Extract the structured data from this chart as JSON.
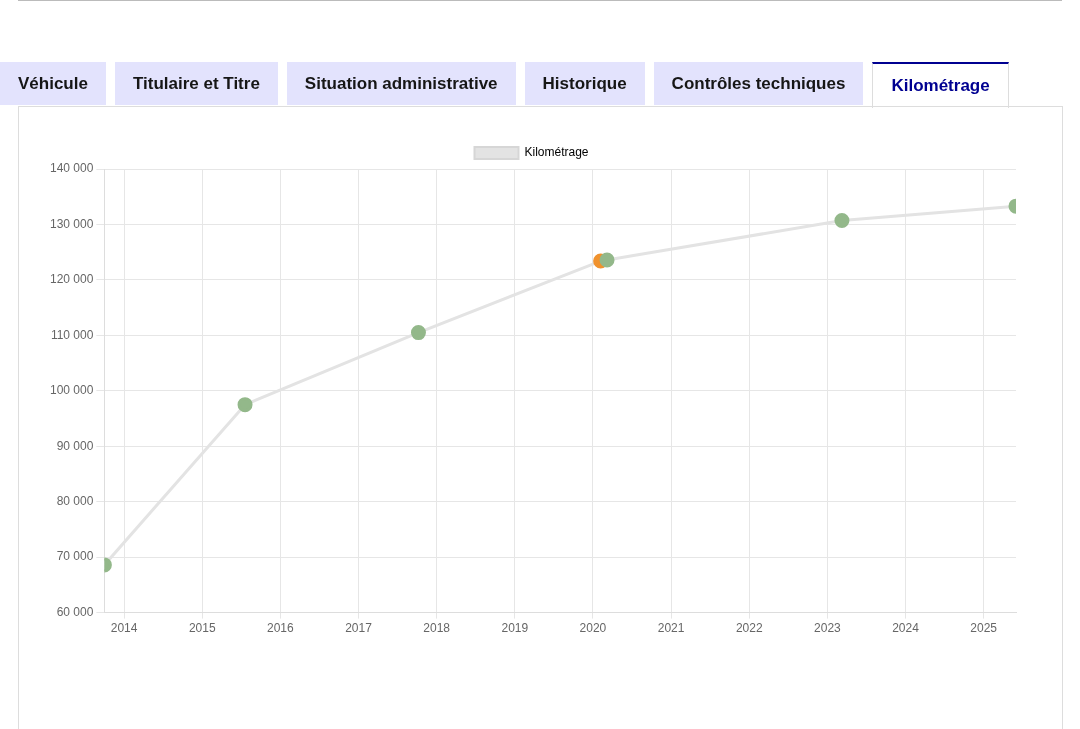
{
  "chart_data": {
    "type": "line",
    "annotations": [
      "Véhicule",
      "Titulaire et Titre",
      "Situation administrative",
      "Historique",
      "Contrôles techniques",
      "Kilométrage"
    ],
    "x": [
      "2013-10-01",
      "2015-07-20",
      "2017-10-08",
      "2020-02-06",
      "2020-03-07",
      "2023-03-10",
      "2025-06-01"
    ],
    "series": [
      {
        "name": "Kilométrage",
        "color": "#e3e3e3",
        "colors": [
          "#93b88a",
          "#93b88a",
          "#93b88a",
          "#f0922e",
          "#93b88a",
          "#93b88a",
          "#93b88a"
        ],
        "values": [
          68600,
          97500,
          110500,
          123400,
          123600,
          130700,
          133300
        ]
      }
    ],
    "xlim": [
      "2013-10-01",
      "2025-06-01"
    ],
    "xticks": [
      {
        "value": "2014",
        "label": "2014"
      },
      {
        "value": "2015",
        "label": "2015"
      },
      {
        "value": "2016",
        "label": "2016"
      },
      {
        "value": "2017",
        "label": "2017"
      },
      {
        "value": "2018",
        "label": "2018"
      },
      {
        "value": "2019",
        "label": "2019"
      },
      {
        "value": "2020",
        "label": "2020"
      },
      {
        "value": "2021",
        "label": "2021"
      },
      {
        "value": "2022",
        "label": "2022"
      },
      {
        "value": "2023",
        "label": "2023"
      },
      {
        "value": "2024",
        "label": "2024"
      },
      {
        "value": "2025",
        "label": "2025"
      }
    ],
    "ylim": [
      60000,
      140000
    ],
    "yticks": [
      {
        "value": 60000,
        "label": "60 000"
      },
      {
        "value": 70000,
        "label": "70 000"
      },
      {
        "value": 80000,
        "label": "80 000"
      },
      {
        "value": 90000,
        "label": "90 000"
      },
      {
        "value": 100000,
        "label": "100 000"
      },
      {
        "value": 110000,
        "label": "110 000"
      },
      {
        "value": 120000,
        "label": "120 000"
      },
      {
        "value": 130000,
        "label": "130 000"
      },
      {
        "value": 140000,
        "label": "140 000"
      }
    ],
    "grid": true,
    "legend": "top",
    "marker": "circle",
    "line_style": "solid"
  }
}
